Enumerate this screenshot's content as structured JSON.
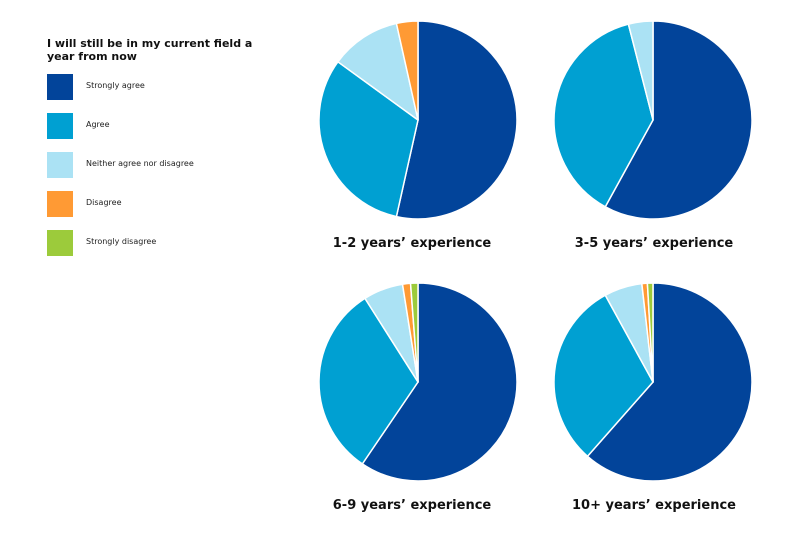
{
  "legend": {
    "title": "I will still be in my current field a year from now",
    "items": [
      {
        "label": "Strongly agree",
        "color": "#02449A"
      },
      {
        "label": "Agree",
        "color": "#00A0D2"
      },
      {
        "label": "Neither agree nor disagree",
        "color": "#ABE2F4"
      },
      {
        "label": "Disagree",
        "color": "#FF9A34"
      },
      {
        "label": "Strongly disagree",
        "color": "#9CCB3B"
      }
    ]
  },
  "chart_data": [
    {
      "type": "pie",
      "title": "1-2 years’ experience",
      "categories": [
        "Strongly agree",
        "Agree",
        "Neither agree nor disagree",
        "Disagree",
        "Strongly disagree"
      ],
      "values": [
        53.5,
        31.5,
        11.5,
        3.5,
        0
      ]
    },
    {
      "type": "pie",
      "title": "3-5 years’ experience",
      "categories": [
        "Strongly agree",
        "Agree",
        "Neither agree nor disagree",
        "Disagree",
        "Strongly disagree"
      ],
      "values": [
        58,
        38,
        4,
        0,
        0
      ]
    },
    {
      "type": "pie",
      "title": "6-9 years’ experience",
      "categories": [
        "Strongly agree",
        "Agree",
        "Neither agree nor disagree",
        "Disagree",
        "Strongly disagree"
      ],
      "values": [
        59.5,
        31.5,
        6.5,
        1.3,
        1.2
      ]
    },
    {
      "type": "pie",
      "title": "10+ years’ experience",
      "categories": [
        "Strongly agree",
        "Agree",
        "Neither agree nor disagree",
        "Disagree",
        "Strongly disagree"
      ],
      "values": [
        61.5,
        30.5,
        6.2,
        0.9,
        0.9
      ]
    }
  ]
}
